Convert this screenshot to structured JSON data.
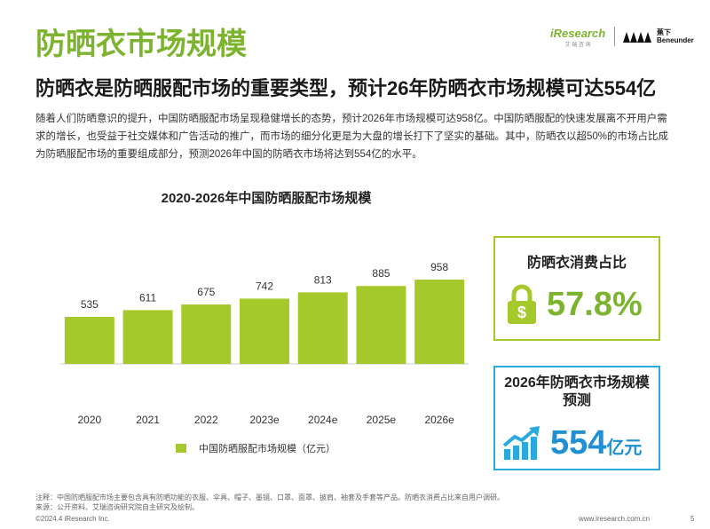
{
  "header": {
    "title": "防晒衣市场规模",
    "subtitle": "防晒衣是防晒服配市场的重要类型，预计26年防晒衣市场规模可达554亿",
    "body": "随着人们防晒意识的提升，中国防晒服配市场呈现稳健增长的态势，预计2026年市场规模可达958亿。中国防晒服配的快速发展离不开用户需求的增长，也受益于社交媒体和广告活动的推广，而市场的细分化更是为大盘的增长打下了坚实的基础。其中，防晒衣以超50%的市场占比成为防晒服配市场的重要组成部分，预测2026年中国的防晒衣市场将达到554亿的水平。"
  },
  "logos": {
    "brand": "iResearch",
    "brand_cn": "艾 瑞 咨 询",
    "partner_cn": "蕉下",
    "partner": "Beneunder"
  },
  "chart_data": {
    "type": "bar",
    "title": "2020-2026年中国防晒服配市场规模",
    "categories": [
      "2020",
      "2021",
      "2022",
      "2023e",
      "2024e",
      "2025e",
      "2026e"
    ],
    "series": [
      {
        "name": "中国防晒服配市场规模（亿元）",
        "color": "#a5c92b",
        "values": [
          535,
          611,
          675,
          742,
          813,
          885,
          958
        ]
      }
    ]
  },
  "cards": [
    {
      "title": "防晒衣消费占比",
      "value": "57.8%"
    },
    {
      "title": "2026年防晒衣市场规模预测",
      "value": "554",
      "unit": "亿元"
    }
  ],
  "footer": {
    "note": "注释：中国防晒服配市场主要包含具有防晒功能的衣服、伞具、帽子、墨镜、口罩、面罩、披肩、袖套及手套等产品。防晒衣消费占比来自用户调研。",
    "source": "来源：公开资料、艾瑞咨询研究院自主研究及绘制。",
    "copyright": "©2024.4 iResearch Inc.",
    "url": "www.iresearch.com.cn",
    "page": "5"
  }
}
